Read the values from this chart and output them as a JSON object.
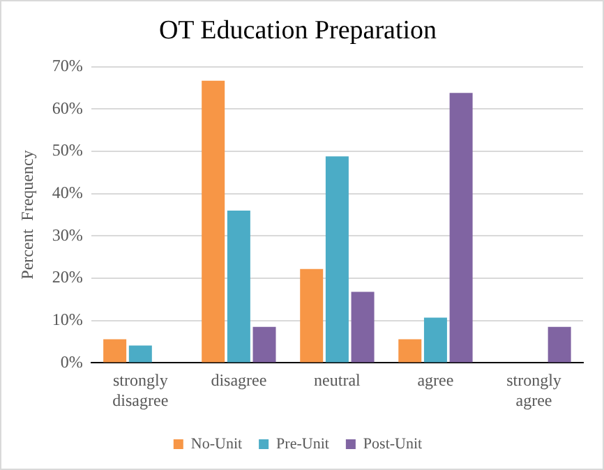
{
  "chart_data": {
    "type": "bar",
    "title": "OT Education Preparation",
    "ylabel": "Percent  Frequency",
    "categories": [
      "strongly disagree",
      "disagree",
      "neutral",
      "agree",
      "strongly agree"
    ],
    "series": [
      {
        "name": "No-Unit",
        "color": "#f79646",
        "values": [
          5.6,
          66.7,
          22.2,
          5.6,
          0
        ]
      },
      {
        "name": "Pre-Unit",
        "color": "#4bacc6",
        "values": [
          4.1,
          36,
          48.8,
          10.7,
          0
        ]
      },
      {
        "name": "Post-Unit",
        "color": "#8064a2",
        "values": [
          0,
          8.5,
          16.8,
          63.8,
          8.5
        ]
      }
    ],
    "ylim": [
      0,
      70
    ],
    "yticks": [
      {
        "value": 0,
        "label": "0%"
      },
      {
        "value": 10,
        "label": "10%"
      },
      {
        "value": 20,
        "label": "20%"
      },
      {
        "value": 30,
        "label": "30%"
      },
      {
        "value": 40,
        "label": "40%"
      },
      {
        "value": 50,
        "label": "50%"
      },
      {
        "value": 60,
        "label": "60%"
      },
      {
        "value": 70,
        "label": "70%"
      }
    ],
    "grid": "y",
    "legend": "bottom"
  }
}
